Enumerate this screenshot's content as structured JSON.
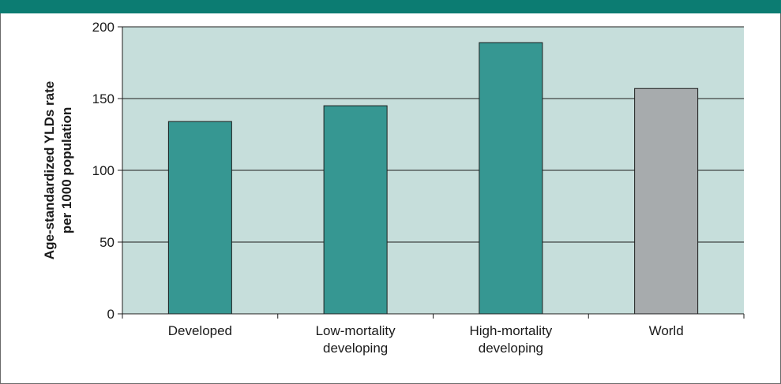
{
  "colors": {
    "band": "#0c7c72",
    "plot_bg": "#c6dedb",
    "bar_primary": "#369792",
    "bar_world": "#a7abad",
    "bar_edge": "#1e1e1e",
    "grid": "#1e1e1e"
  },
  "chart_data": {
    "type": "bar",
    "categories": [
      [
        "Developed"
      ],
      [
        "Low-mortality",
        "developing"
      ],
      [
        "High-mortality",
        "developing"
      ],
      [
        "World"
      ]
    ],
    "values": [
      134,
      145,
      189,
      157
    ],
    "bar_colors": [
      "primary",
      "primary",
      "primary",
      "world"
    ],
    "ylabel": [
      "Age-standardized YLDs rate",
      "per 1000 population"
    ],
    "xlabel": "",
    "title": "",
    "ylim": [
      0,
      200
    ],
    "yticks": [
      0,
      50,
      100,
      150,
      200
    ],
    "grid": true
  }
}
